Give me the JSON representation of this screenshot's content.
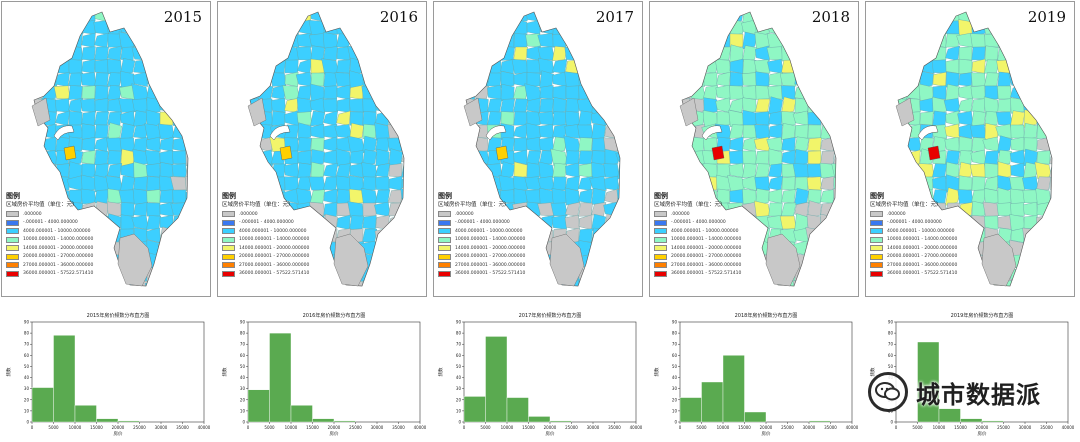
{
  "colors": {
    "c0": "#c8c8c8",
    "c1": "#3a78f0",
    "c2": "#3ccfff",
    "c3": "#8ff7c4",
    "c4": "#f2f56a",
    "c5": "#ffd000",
    "c6": "#ff8000",
    "c7": "#e80000",
    "bar": "#5aaa50"
  },
  "maps": [
    {
      "year": "2015",
      "legend_title": "图例",
      "legend_sub": "区域房价平均值（单位：元）",
      "legend_rows": [
        ".000000",
        "-.000001 - 4000.000000",
        "4000.000001 - 10000.000000",
        "10000.000001 - 14000.000000",
        "14000.000001 - 20000.000000",
        "20000.000001 - 27000.000000",
        "27000.000001 - 36000.000000",
        "36000.000001 - 57522.571410"
      ]
    },
    {
      "year": "2016",
      "legend_title": "图例",
      "legend_sub": "区域房价平均值（单位：元）",
      "legend_rows": [
        ".000000",
        "-.000001 - 4000.000000",
        "4000.000001 - 10000.000000",
        "10000.000001 - 14000.000000",
        "14000.000001 - 20000.000000",
        "20000.000001 - 27000.000000",
        "27000.000001 - 36000.000000",
        "36000.000001 - 57522.571410"
      ]
    },
    {
      "year": "2017",
      "legend_title": "图例",
      "legend_sub": "区域房价平均值（单位：元）",
      "legend_rows": [
        ".000000",
        "-.000001 - 4000.000000",
        "4000.000001 - 10000.000000",
        "10000.000001 - 14000.000000",
        "14000.000001 - 20000.000000",
        "20000.000001 - 27000.000000",
        "27000.000001 - 36000.000000",
        "36000.000001 - 57522.571410"
      ]
    },
    {
      "year": "2018",
      "legend_title": "图例",
      "legend_sub": "区域房价平均值（单位：元）",
      "legend_rows": [
        ".000000",
        "-.000001 - 4000.000000",
        "4000.000001 - 10000.000000",
        "10000.000001 - 14000.000000",
        "14000.000001 - 20000.000000",
        "20000.000001 - 27000.000000",
        "27000.000001 - 36000.000000",
        "36000.000001 - 57522.571410"
      ]
    },
    {
      "year": "2019",
      "legend_title": "图例",
      "legend_sub": "区域房价平均值（单位：元）",
      "legend_rows": [
        ".000000",
        "-.000001 - 4000.000000",
        "4000.000001 - 10000.000000",
        "10000.000001 - 14000.000000",
        "14000.000001 - 20000.000000",
        "20000.000001 - 27000.000000",
        "27000.000001 - 36000.000000",
        "36000.000001 - 57522.571410"
      ]
    }
  ],
  "chart_data": [
    {
      "type": "bar",
      "title": "2015年房价频数分布直方图",
      "xlabel": "房价",
      "ylabel": "频数",
      "bin_edges": [
        0,
        5000,
        10000,
        15000,
        20000,
        25000,
        30000,
        35000,
        40000
      ],
      "values": [
        31,
        78,
        15,
        3,
        1,
        0,
        0,
        0
      ],
      "xlim": [
        0,
        40000
      ],
      "ylim": [
        0,
        90
      ],
      "xticks": [
        0,
        5000,
        10000,
        15000,
        20000,
        25000,
        30000,
        35000,
        40000
      ],
      "yticks": [
        0,
        10,
        20,
        30,
        40,
        50,
        60,
        70,
        80,
        90
      ],
      "grid": false
    },
    {
      "type": "bar",
      "title": "2016年房价频数分布直方图",
      "xlabel": "房价",
      "ylabel": "频数",
      "bin_edges": [
        0,
        5000,
        10000,
        15000,
        20000,
        25000,
        30000,
        35000,
        40000
      ],
      "values": [
        29,
        80,
        15,
        3,
        1,
        0,
        0,
        0
      ],
      "xlim": [
        0,
        40000
      ],
      "ylim": [
        0,
        90
      ],
      "xticks": [
        0,
        5000,
        10000,
        15000,
        20000,
        25000,
        30000,
        35000,
        40000
      ],
      "yticks": [
        0,
        10,
        20,
        30,
        40,
        50,
        60,
        70,
        80,
        90
      ],
      "grid": false
    },
    {
      "type": "bar",
      "title": "2017年房价频数分布直方图",
      "xlabel": "房价",
      "ylabel": "频数",
      "bin_edges": [
        0,
        5000,
        10000,
        15000,
        20000,
        25000,
        30000,
        35000,
        40000
      ],
      "values": [
        23,
        77,
        22,
        5,
        1,
        0,
        0,
        0
      ],
      "xlim": [
        0,
        40000
      ],
      "ylim": [
        0,
        90
      ],
      "xticks": [
        0,
        5000,
        10000,
        15000,
        20000,
        25000,
        30000,
        35000,
        40000
      ],
      "yticks": [
        0,
        10,
        20,
        30,
        40,
        50,
        60,
        70,
        80,
        90
      ],
      "grid": false
    },
    {
      "type": "bar",
      "title": "2018年房价频数分布直方图",
      "xlabel": "房价",
      "ylabel": "频数",
      "bin_edges": [
        0,
        5000,
        10000,
        15000,
        20000,
        25000,
        30000,
        35000,
        40000
      ],
      "values": [
        22,
        36,
        60,
        9,
        0,
        0,
        1,
        0
      ],
      "xlim": [
        0,
        40000
      ],
      "ylim": [
        0,
        90
      ],
      "xticks": [
        0,
        5000,
        10000,
        15000,
        20000,
        25000,
        30000,
        35000,
        40000
      ],
      "yticks": [
        0,
        10,
        20,
        30,
        40,
        50,
        60,
        70,
        80,
        90
      ],
      "grid": false
    },
    {
      "type": "bar",
      "title": "2019年房价频数分布直方图",
      "xlabel": "房价",
      "ylabel": "频数",
      "bin_edges": [
        0,
        5000,
        10000,
        15000,
        20000,
        25000,
        30000,
        35000,
        40000
      ],
      "values": [
        0,
        72,
        12,
        3,
        1,
        0,
        0,
        0
      ],
      "xlim": [
        0,
        40000
      ],
      "ylim": [
        0,
        90
      ],
      "xticks": [
        0,
        5000,
        10000,
        15000,
        20000,
        25000,
        30000,
        35000,
        40000
      ],
      "yticks": [
        0,
        10,
        20,
        30,
        40,
        50,
        60,
        70,
        80,
        90
      ],
      "grid": false
    }
  ],
  "watermark": {
    "text": "城市数据派",
    "icon": "wechat-icon"
  }
}
